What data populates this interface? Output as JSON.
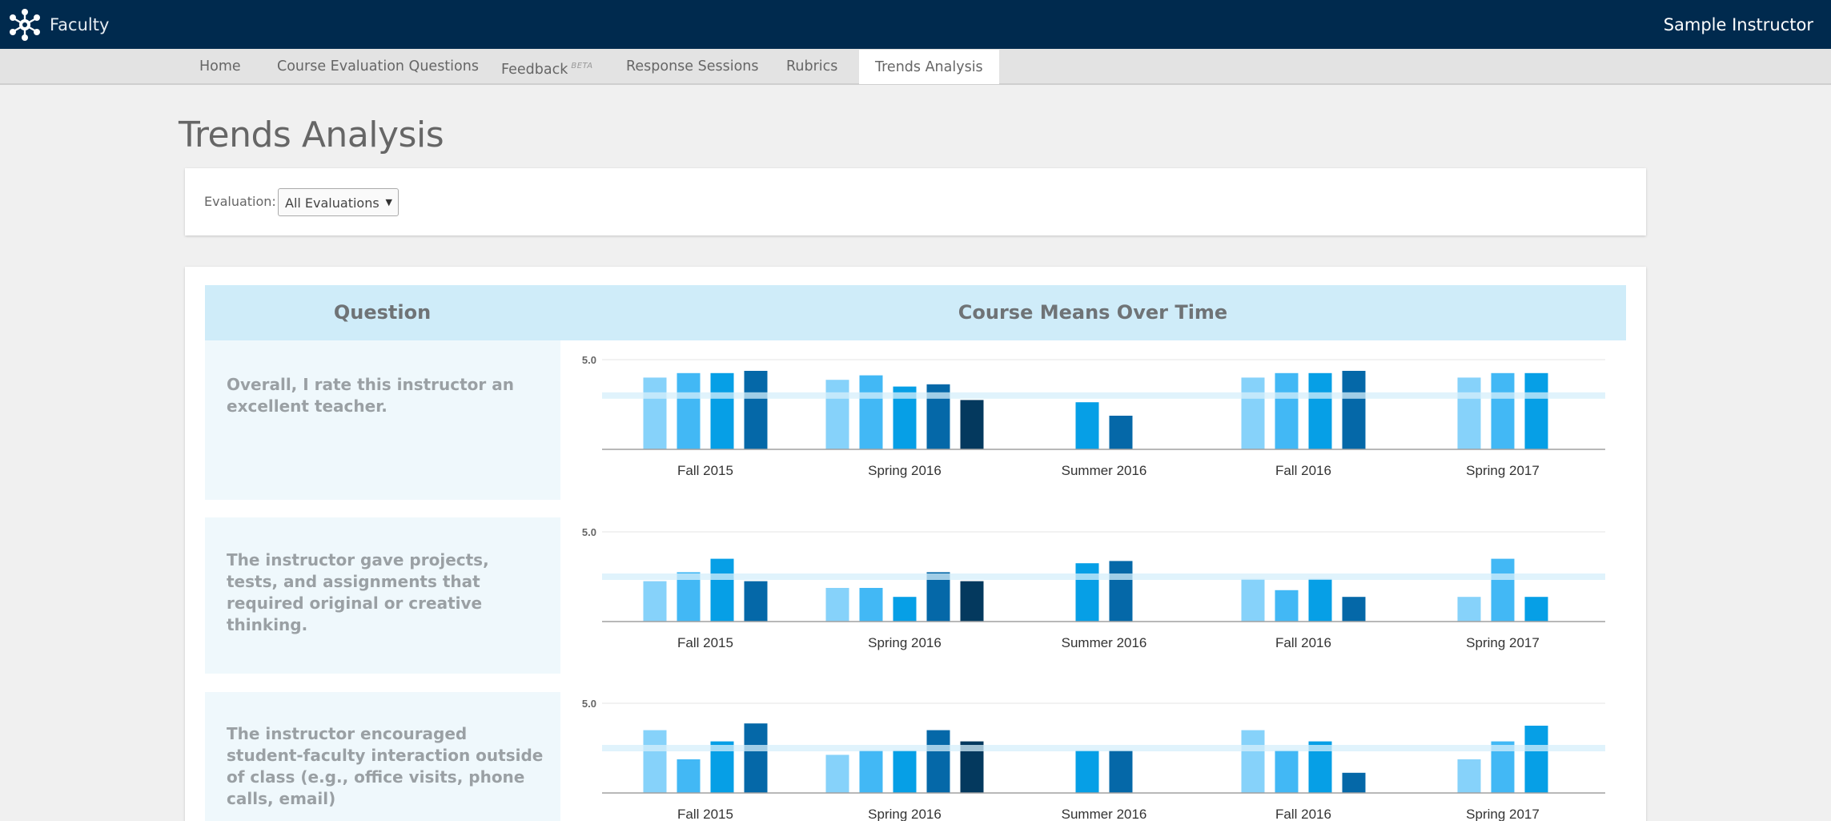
{
  "header": {
    "brand": "Faculty",
    "brand_icon": "network-hub-icon",
    "user": "Sample Instructor"
  },
  "nav": {
    "items": [
      {
        "label": "Home"
      },
      {
        "label": "Course Evaluation Questions"
      },
      {
        "label": "Feedback",
        "badge": "BETA"
      },
      {
        "label": "Response Sessions"
      },
      {
        "label": "Rubrics"
      },
      {
        "label": "Trends Analysis",
        "active": true
      }
    ]
  },
  "page": {
    "title": "Trends Analysis"
  },
  "filter": {
    "label": "Evaluation:",
    "selected": "All Evaluations"
  },
  "table": {
    "headers": {
      "question": "Question",
      "means": "Course Means Over Time"
    },
    "rows": [
      {
        "question": "Overall, I rate this instructor an excellent teacher."
      },
      {
        "question": "The instructor gave projects, tests, and assignments that required original or creative thinking."
      },
      {
        "question": "The instructor encouraged student-faculty interaction outside of class (e.g., office visits, phone calls, email)"
      }
    ]
  },
  "colors": {
    "topbar": "#002a4e",
    "series": [
      "#86d2fa",
      "#42b8f5",
      "#069fe6",
      "#0568a8",
      "#04395e"
    ],
    "mean_band": "#d6effb"
  },
  "chart_data": [
    {
      "type": "bar",
      "categories": [
        "Fall 2015",
        "Spring 2016",
        "Summer 2016",
        "Fall 2016",
        "Spring 2017"
      ],
      "ylim": [
        0,
        5
      ],
      "ytick": "5.0",
      "mean_line": 4.2,
      "groups": [
        [
          4.6,
          4.7,
          4.7,
          4.75
        ],
        [
          4.55,
          4.65,
          4.4,
          4.45,
          4.1
        ],
        [
          {
            "series": 2,
            "value": 4.05
          },
          {
            "series": 3,
            "value": 3.75
          }
        ],
        [
          4.6,
          4.7,
          4.7,
          4.75
        ],
        [
          4.6,
          4.7,
          4.7
        ]
      ]
    },
    {
      "type": "bar",
      "categories": [
        "Fall 2015",
        "Spring 2016",
        "Summer 2016",
        "Fall 2016",
        "Spring 2017"
      ],
      "ylim": [
        0,
        5
      ],
      "ytick": "5.0",
      "mean_line": 4.0,
      "groups": [
        [
          3.9,
          4.1,
          4.4,
          3.9
        ],
        [
          3.75,
          3.75,
          3.55,
          4.1,
          3.9
        ],
        [
          {
            "series": 2,
            "value": 4.3
          },
          {
            "series": 3,
            "value": 4.35
          }
        ],
        [
          3.95,
          3.7,
          3.95,
          3.55
        ],
        [
          3.55,
          4.4,
          3.55
        ]
      ]
    },
    {
      "type": "bar",
      "categories": [
        "Fall 2015",
        "Spring 2016",
        "Summer 2016",
        "Fall 2016",
        "Spring 2017"
      ],
      "ylim": [
        0,
        5
      ],
      "ytick": "5.0",
      "mean_line": 4.0,
      "groups": [
        [
          4.4,
          3.75,
          4.15,
          4.55
        ],
        [
          3.85,
          3.95,
          3.95,
          4.4,
          4.15
        ],
        [
          {
            "series": 2,
            "value": 3.95
          },
          {
            "series": 3,
            "value": 3.95
          }
        ],
        [
          4.4,
          3.95,
          4.15,
          3.45
        ],
        [
          3.75,
          4.15,
          4.5
        ]
      ]
    }
  ]
}
